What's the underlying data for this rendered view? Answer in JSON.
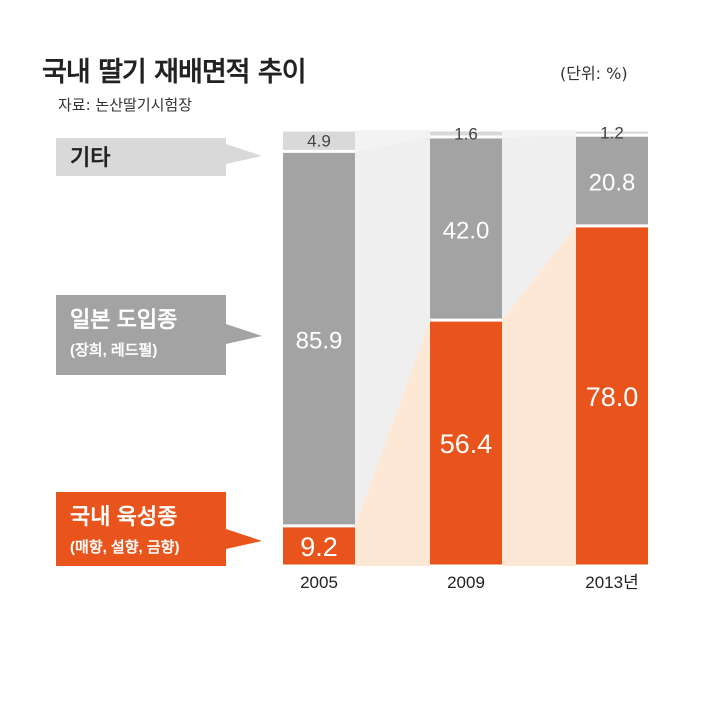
{
  "chart_data": {
    "type": "bar",
    "stacked": true,
    "title": "국내 딸기 재배면적 추이",
    "unit": "(단위: %)",
    "source": "자료: 논산딸기시험장",
    "categories": [
      "2005",
      "2009",
      "2013년"
    ],
    "ylim": [
      0,
      100
    ],
    "series": [
      {
        "name": "국내 육성종",
        "sub": "(매향, 설향, 금향)",
        "color": "#e8541c",
        "values": [
          9.2,
          56.4,
          78.0
        ],
        "labels": [
          "9.2",
          "56.4",
          "78.0"
        ]
      },
      {
        "name": "일본 도입종",
        "sub": "(장희, 레드펄)",
        "color": "#a3a3a3",
        "values": [
          85.9,
          42.0,
          20.8
        ],
        "labels": [
          "85.9",
          "42.0",
          "20.8"
        ]
      },
      {
        "name": "기타",
        "sub": "",
        "color": "#d9d9d9",
        "values": [
          4.9,
          1.6,
          1.2
        ],
        "labels": [
          "4.9",
          "1.6",
          "1.2"
        ]
      }
    ],
    "grid": false,
    "legend": "left"
  }
}
